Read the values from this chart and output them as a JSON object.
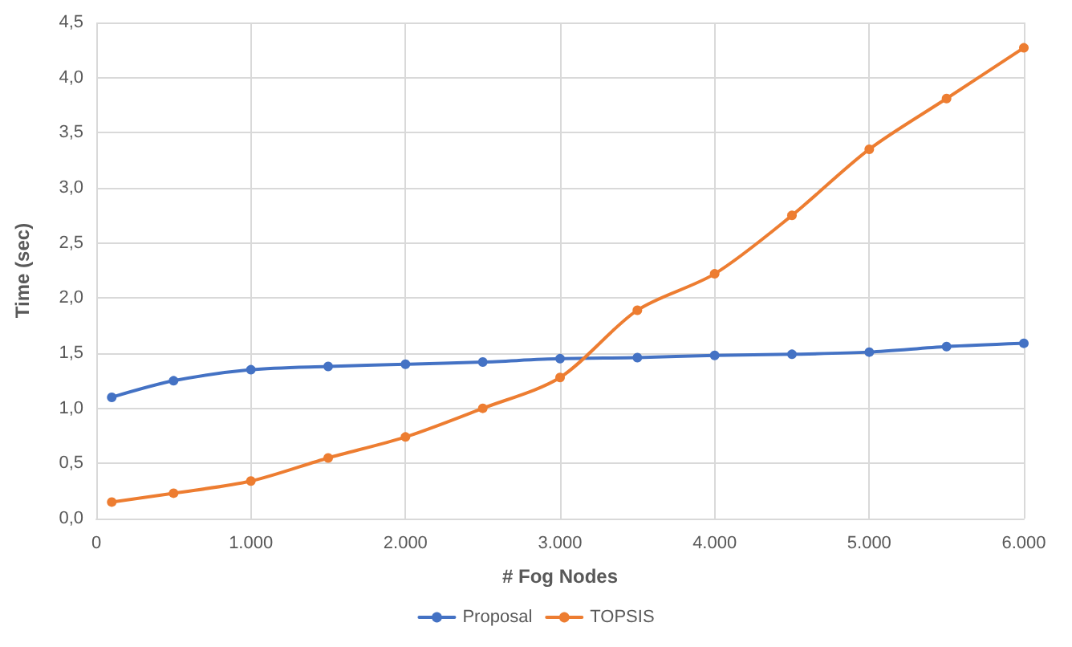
{
  "chart_data": {
    "type": "line",
    "xlabel": "# Fog Nodes",
    "ylabel": "Time (sec)",
    "x": [
      100,
      500,
      1000,
      1500,
      2000,
      2500,
      3000,
      3500,
      4000,
      4500,
      5000,
      5500,
      6000
    ],
    "series": [
      {
        "name": "Proposal",
        "color": "#4472c4",
        "values": [
          1.1,
          1.25,
          1.35,
          1.38,
          1.4,
          1.42,
          1.45,
          1.46,
          1.48,
          1.49,
          1.51,
          1.56,
          1.59
        ]
      },
      {
        "name": "TOPSIS",
        "color": "#ed7d31",
        "values": [
          0.15,
          0.23,
          0.34,
          0.55,
          0.74,
          1.0,
          1.28,
          1.89,
          2.22,
          2.75,
          3.35,
          3.81,
          4.27
        ]
      }
    ],
    "xlim": [
      0,
      6000
    ],
    "xticks": [
      0,
      {
        "value": 1000,
        "label": "1.000"
      },
      {
        "value": 2000,
        "label": "2.000"
      },
      {
        "value": 3000,
        "label": "3.000"
      },
      {
        "value": 4000,
        "label": "4.000"
      },
      {
        "value": 5000,
        "label": "5.000"
      },
      {
        "value": 6000,
        "label": "6.000"
      }
    ],
    "ylim": [
      0,
      4.5
    ],
    "yticks": [
      {
        "value": 0,
        "label": "0,0"
      },
      {
        "value": 0.5,
        "label": "0,5"
      },
      {
        "value": 1,
        "label": "1,0"
      },
      {
        "value": 1.5,
        "label": "1,5"
      },
      {
        "value": 2,
        "label": "2,0"
      },
      {
        "value": 2.5,
        "label": "2,5"
      },
      {
        "value": 3,
        "label": "3,0"
      },
      {
        "value": 3.5,
        "label": "3,5"
      },
      {
        "value": 4,
        "label": "4,0"
      },
      {
        "value": 4.5,
        "label": "4,5"
      }
    ],
    "grid": true,
    "legend": "bottom",
    "marker": "circle",
    "line_style": "solid"
  }
}
